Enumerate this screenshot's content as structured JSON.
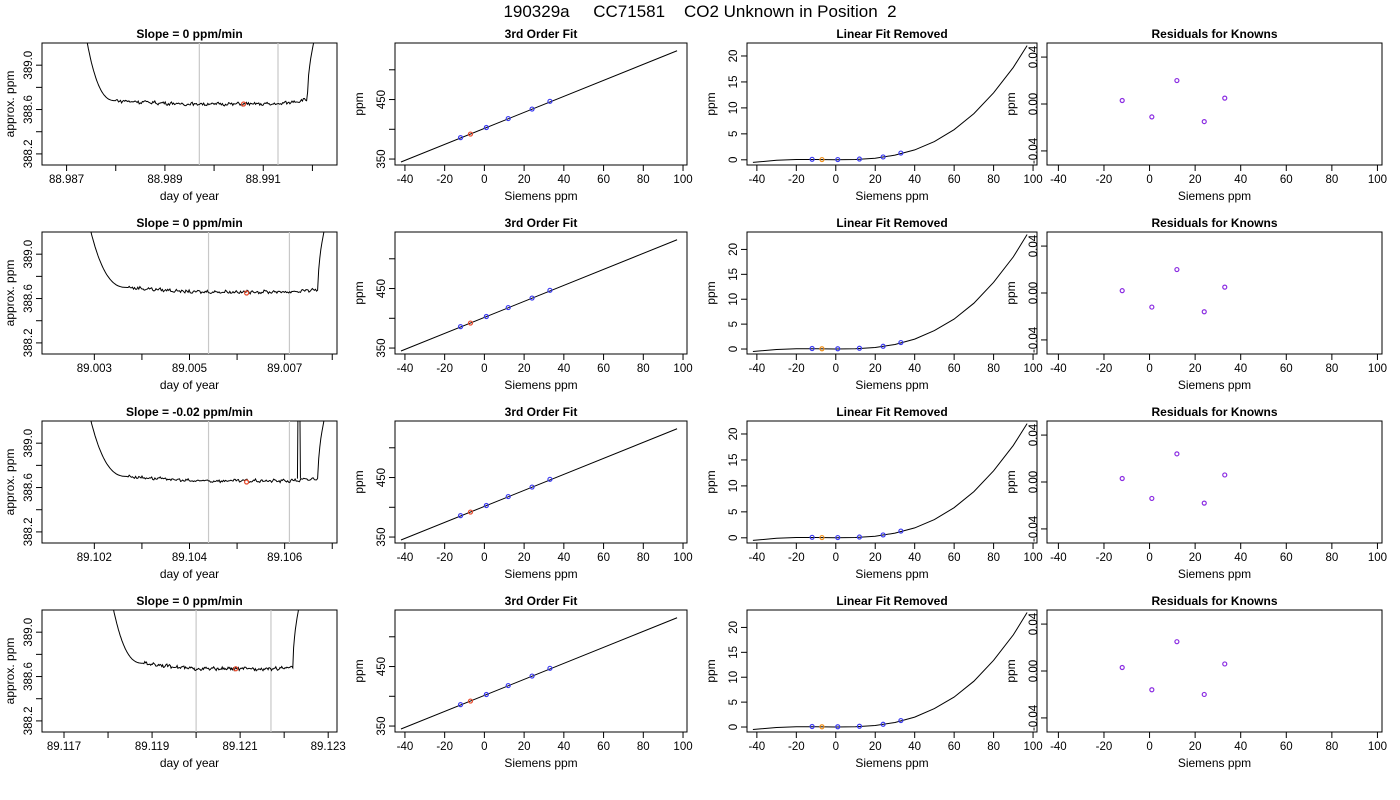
{
  "page": {
    "title": "190329a     CC71581    CO2 Unknown in Position  2"
  },
  "chart_data": [
    {
      "type": "line",
      "panel": "timeseries",
      "row": 1,
      "title": "Slope =  0  ppm/min",
      "xlabel": "day of year",
      "ylabel": "approx. ppm",
      "xlim": [
        88.9865,
        88.9925
      ],
      "ylim": [
        388.1,
        389.2
      ],
      "xticks": [
        "88.987",
        "88.989",
        "88.991"
      ],
      "xtick_values": [
        88.987,
        88.989,
        88.991
      ],
      "yticks": [
        "388.2",
        "388.6",
        "389.0"
      ],
      "ytick_values": [
        388.2,
        388.6,
        389.0
      ],
      "cursor_lines": [
        88.9897,
        88.9913
      ],
      "marker": {
        "x": 88.9906,
        "y": 388.65,
        "color": "#e8482a"
      },
      "trace": {
        "start": 88.9874,
        "flat_start": 88.988,
        "flat_end": 88.9919,
        "end": 88.99205,
        "high": 389.25,
        "settle": 388.68,
        "level": 388.65,
        "end_level": 388.69
      },
      "line_color": "#000000"
    },
    {
      "type": "scatter",
      "panel": "fit",
      "row": 1,
      "title": "3rd Order Fit",
      "xlabel": "Siemens ppm",
      "ylabel": "ppm",
      "xlim": [
        -45,
        102
      ],
      "ylim": [
        340,
        545
      ],
      "xticks": [
        "-40",
        "-20",
        "0",
        "20",
        "40",
        "60",
        "80",
        "100"
      ],
      "xtick_values": [
        -40,
        -20,
        0,
        20,
        40,
        60,
        80,
        100
      ],
      "yticks": [
        "350",
        "450"
      ],
      "ytick_values": [
        350,
        450
      ],
      "yminor": [
        400,
        500
      ],
      "curve": {
        "x": [
          -42,
          97
        ],
        "y": [
          345,
          532
        ]
      },
      "knowns": {
        "x": [
          -12,
          1,
          12,
          24,
          33
        ],
        "y": [
          386,
          403,
          418,
          434,
          447
        ]
      },
      "unknown": {
        "x": [
          -7,
          -7
        ],
        "y": [
          392,
          392
        ]
      },
      "known_color": "#3b3bf0",
      "unknown_color": "#e8482a"
    },
    {
      "type": "scatter",
      "panel": "linear-removed",
      "row": 1,
      "title": "Linear Fit Removed",
      "xlabel": "Siemens ppm",
      "ylabel": "ppm",
      "xlim": [
        -45,
        102
      ],
      "ylim": [
        -1,
        22.5
      ],
      "xticks": [
        "-40",
        "-20",
        "0",
        "20",
        "40",
        "60",
        "80",
        "100"
      ],
      "xtick_values": [
        -40,
        -20,
        0,
        20,
        40,
        60,
        80,
        100
      ],
      "yticks": [
        "0",
        "5",
        "10",
        "15",
        "20"
      ],
      "ytick_values": [
        0,
        5,
        10,
        15,
        20
      ],
      "curve_points": {
        "x": [
          -42,
          -30,
          -20,
          -10,
          0,
          10,
          20,
          30,
          40,
          50,
          60,
          70,
          80,
          90,
          97
        ],
        "y": [
          -0.5,
          -0.1,
          0.05,
          0.05,
          0.0,
          0.05,
          0.3,
          0.9,
          1.9,
          3.5,
          5.8,
          8.9,
          12.9,
          17.8,
          22.0
        ]
      },
      "knowns": {
        "x": [
          -12,
          1,
          12,
          24,
          33
        ],
        "y": [
          0.1,
          0.05,
          0.15,
          0.55,
          1.3
        ]
      },
      "unknown": {
        "x": [
          -7
        ],
        "y": [
          0.05
        ]
      },
      "known_color": "#3b3bf0",
      "unknown_color": "#f0901a"
    },
    {
      "type": "scatter",
      "panel": "residuals",
      "row": 1,
      "title": "Residuals for Knowns",
      "xlabel": "Siemens ppm",
      "ylabel": "ppm",
      "xlim": [
        -45,
        102
      ],
      "ylim": [
        -0.052,
        0.052
      ],
      "xticks": [
        "-40",
        "-20",
        "0",
        "20",
        "40",
        "60",
        "80",
        "100"
      ],
      "xtick_values": [
        -40,
        -20,
        0,
        20,
        40,
        60,
        80,
        100
      ],
      "yticks": [
        "-0.04",
        "0.00",
        "0.04"
      ],
      "ytick_values": [
        -0.04,
        0.0,
        0.04
      ],
      "points": {
        "x": [
          -12,
          1,
          12,
          24,
          33
        ],
        "y": [
          0.003,
          -0.011,
          0.02,
          -0.015,
          0.005
        ]
      },
      "point_color": "#8a2be2"
    },
    {
      "type": "line",
      "panel": "timeseries",
      "row": 2,
      "title": "Slope =  0  ppm/min",
      "xlabel": "day of year",
      "ylabel": "approx. ppm",
      "xlim": [
        89.0019,
        89.0081
      ],
      "ylim": [
        388.1,
        389.2
      ],
      "xticks": [
        "89.003",
        "89.005",
        "89.007"
      ],
      "xtick_values": [
        89.003,
        89.005,
        89.007
      ],
      "yticks": [
        "388.2",
        "388.6",
        "389.0"
      ],
      "ytick_values": [
        388.2,
        388.6,
        389.0
      ],
      "cursor_lines": [
        89.0054,
        89.0071
      ],
      "marker": {
        "x": 89.0062,
        "y": 388.65,
        "color": "#e8482a"
      },
      "trace": {
        "start": 89.0029,
        "flat_start": 89.0037,
        "flat_end": 89.0077,
        "end": 89.00785,
        "high": 389.25,
        "settle": 388.7,
        "level": 388.66,
        "end_level": 388.68
      },
      "line_color": "#000000"
    },
    {
      "type": "scatter",
      "panel": "fit",
      "row": 2,
      "title": "3rd Order Fit",
      "xlabel": "Siemens ppm",
      "ylabel": "ppm",
      "xlim": [
        -45,
        102
      ],
      "ylim": [
        340,
        545
      ],
      "xticks": [
        "-40",
        "-20",
        "0",
        "20",
        "40",
        "60",
        "80",
        "100"
      ],
      "xtick_values": [
        -40,
        -20,
        0,
        20,
        40,
        60,
        80,
        100
      ],
      "yticks": [
        "350",
        "450"
      ],
      "ytick_values": [
        350,
        450
      ],
      "yminor": [
        400,
        500
      ],
      "curve": {
        "x": [
          -42,
          97
        ],
        "y": [
          345,
          532
        ]
      },
      "knowns": {
        "x": [
          -12,
          1,
          12,
          24,
          33
        ],
        "y": [
          386,
          403,
          418,
          434,
          447
        ]
      },
      "unknown": {
        "x": [
          -7
        ],
        "y": [
          392
        ]
      },
      "known_color": "#3b3bf0",
      "unknown_color": "#e8482a"
    },
    {
      "type": "scatter",
      "panel": "linear-removed",
      "row": 2,
      "title": "Linear Fit Removed",
      "xlabel": "Siemens ppm",
      "ylabel": "ppm",
      "xlim": [
        -45,
        102
      ],
      "ylim": [
        -1,
        23.5
      ],
      "xticks": [
        "-40",
        "-20",
        "0",
        "20",
        "40",
        "60",
        "80",
        "100"
      ],
      "xtick_values": [
        -40,
        -20,
        0,
        20,
        40,
        60,
        80,
        100
      ],
      "yticks": [
        "0",
        "5",
        "10",
        "15",
        "20"
      ],
      "ytick_values": [
        0,
        5,
        10,
        15,
        20
      ],
      "curve_points": {
        "x": [
          -42,
          -30,
          -20,
          -10,
          0,
          10,
          20,
          30,
          40,
          50,
          60,
          70,
          80,
          90,
          97
        ],
        "y": [
          -0.5,
          -0.1,
          0.05,
          0.05,
          0.0,
          0.05,
          0.3,
          0.9,
          2.0,
          3.7,
          6.0,
          9.2,
          13.4,
          18.5,
          23.0
        ]
      },
      "knowns": {
        "x": [
          -12,
          1,
          12,
          24,
          33
        ],
        "y": [
          0.1,
          0.05,
          0.15,
          0.55,
          1.3
        ]
      },
      "unknown": {
        "x": [
          -7
        ],
        "y": [
          0.05
        ]
      },
      "known_color": "#3b3bf0",
      "unknown_color": "#f0901a"
    },
    {
      "type": "scatter",
      "panel": "residuals",
      "row": 2,
      "title": "Residuals for Knowns",
      "xlabel": "Siemens ppm",
      "ylabel": "ppm",
      "xlim": [
        -45,
        102
      ],
      "ylim": [
        -0.052,
        0.052
      ],
      "xticks": [
        "-40",
        "-20",
        "0",
        "20",
        "40",
        "60",
        "80",
        "100"
      ],
      "xtick_values": [
        -40,
        -20,
        0,
        20,
        40,
        60,
        80,
        100
      ],
      "yticks": [
        "-0.04",
        "0.00",
        "0.04"
      ],
      "ytick_values": [
        -0.04,
        0.0,
        0.04
      ],
      "points": {
        "x": [
          -12,
          1,
          12,
          24,
          33
        ],
        "y": [
          0.002,
          -0.012,
          0.02,
          -0.016,
          0.005
        ]
      },
      "point_color": "#8a2be2"
    },
    {
      "type": "line",
      "panel": "timeseries",
      "row": 3,
      "title": "Slope =  -0.02  ppm/min",
      "xlabel": "day of year",
      "ylabel": "approx. ppm",
      "xlim": [
        89.1009,
        89.1071
      ],
      "ylim": [
        388.1,
        389.2
      ],
      "xticks": [
        "89.102",
        "89.104",
        "89.106"
      ],
      "xtick_values": [
        89.102,
        89.104,
        89.106
      ],
      "yticks": [
        "388.2",
        "388.6",
        "389.0"
      ],
      "ytick_values": [
        388.2,
        388.6,
        389.0
      ],
      "cursor_lines": [
        89.1044,
        89.1061
      ],
      "marker": {
        "x": 89.1052,
        "y": 388.65,
        "color": "#e8482a"
      },
      "trace": {
        "start": 89.1019,
        "flat_start": 89.1027,
        "flat_end": 89.1067,
        "end": 89.10685,
        "high": 389.25,
        "settle": 388.7,
        "level": 388.66,
        "end_level": 388.68,
        "spike": 89.1063
      },
      "line_color": "#000000"
    },
    {
      "type": "scatter",
      "panel": "fit",
      "row": 3,
      "title": "3rd Order Fit",
      "xlabel": "Siemens ppm",
      "ylabel": "ppm",
      "xlim": [
        -45,
        102
      ],
      "ylim": [
        340,
        545
      ],
      "xticks": [
        "-40",
        "-20",
        "0",
        "20",
        "40",
        "60",
        "80",
        "100"
      ],
      "xtick_values": [
        -40,
        -20,
        0,
        20,
        40,
        60,
        80,
        100
      ],
      "yticks": [
        "350",
        "450"
      ],
      "ytick_values": [
        350,
        450
      ],
      "yminor": [
        400,
        500
      ],
      "curve": {
        "x": [
          -42,
          97
        ],
        "y": [
          345,
          532
        ]
      },
      "knowns": {
        "x": [
          -12,
          1,
          12,
          24,
          33
        ],
        "y": [
          386,
          403,
          418,
          434,
          447
        ]
      },
      "unknown": {
        "x": [
          -7
        ],
        "y": [
          392
        ]
      },
      "known_color": "#3b3bf0",
      "unknown_color": "#e8482a"
    },
    {
      "type": "scatter",
      "panel": "linear-removed",
      "row": 3,
      "title": "Linear Fit Removed",
      "xlabel": "Siemens ppm",
      "ylabel": "ppm",
      "xlim": [
        -45,
        102
      ],
      "ylim": [
        -1,
        22.5
      ],
      "xticks": [
        "-40",
        "-20",
        "0",
        "20",
        "40",
        "60",
        "80",
        "100"
      ],
      "xtick_values": [
        -40,
        -20,
        0,
        20,
        40,
        60,
        80,
        100
      ],
      "yticks": [
        "0",
        "5",
        "10",
        "15",
        "20"
      ],
      "ytick_values": [
        0,
        5,
        10,
        15,
        20
      ],
      "curve_points": {
        "x": [
          -42,
          -30,
          -20,
          -10,
          0,
          10,
          20,
          30,
          40,
          50,
          60,
          70,
          80,
          90,
          97
        ],
        "y": [
          -0.5,
          -0.1,
          0.05,
          0.05,
          0.0,
          0.05,
          0.3,
          0.9,
          1.9,
          3.5,
          5.8,
          8.9,
          12.9,
          17.8,
          22.0
        ]
      },
      "knowns": {
        "x": [
          -12,
          1,
          12,
          24,
          33
        ],
        "y": [
          0.1,
          0.05,
          0.15,
          0.55,
          1.3
        ]
      },
      "unknown": {
        "x": [
          -7
        ],
        "y": [
          0.05
        ]
      },
      "known_color": "#3b3bf0",
      "unknown_color": "#f0901a"
    },
    {
      "type": "scatter",
      "panel": "residuals",
      "row": 3,
      "title": "Residuals for Knowns",
      "xlabel": "Siemens ppm",
      "ylabel": "ppm",
      "xlim": [
        -45,
        102
      ],
      "ylim": [
        -0.052,
        0.052
      ],
      "xticks": [
        "-40",
        "-20",
        "0",
        "20",
        "40",
        "60",
        "80",
        "100"
      ],
      "xtick_values": [
        -40,
        -20,
        0,
        20,
        40,
        60,
        80,
        100
      ],
      "yticks": [
        "-0.04",
        "0.00",
        "0.04"
      ],
      "ytick_values": [
        -0.04,
        0.0,
        0.04
      ],
      "points": {
        "x": [
          -12,
          1,
          12,
          24,
          33
        ],
        "y": [
          0.003,
          -0.014,
          0.024,
          -0.018,
          0.006
        ]
      },
      "point_color": "#8a2be2"
    },
    {
      "type": "line",
      "panel": "timeseries",
      "row": 4,
      "title": "Slope =  0  ppm/min",
      "xlabel": "day of year",
      "ylabel": "approx. ppm",
      "xlim": [
        89.1165,
        89.1232
      ],
      "ylim": [
        388.1,
        389.2
      ],
      "xticks": [
        "89.117",
        "89.119",
        "89.121",
        "89.123"
      ],
      "xtick_values": [
        89.117,
        89.119,
        89.121,
        89.123
      ],
      "yticks": [
        "388.2",
        "388.6",
        "389.0"
      ],
      "ytick_values": [
        388.2,
        388.6,
        389.0
      ],
      "cursor_lines": [
        89.12,
        89.1217
      ],
      "marker": {
        "x": 89.1209,
        "y": 388.67,
        "color": "#e8482a"
      },
      "trace": {
        "start": 89.1181,
        "flat_start": 89.1188,
        "flat_end": 89.1222,
        "end": 89.12235,
        "high": 389.25,
        "settle": 388.72,
        "level": 388.67,
        "end_level": 388.68
      },
      "line_color": "#000000"
    },
    {
      "type": "scatter",
      "panel": "fit",
      "row": 4,
      "title": "3rd Order Fit",
      "xlabel": "Siemens ppm",
      "ylabel": "ppm",
      "xlim": [
        -45,
        102
      ],
      "ylim": [
        340,
        545
      ],
      "xticks": [
        "-40",
        "-20",
        "0",
        "20",
        "40",
        "60",
        "80",
        "100"
      ],
      "xtick_values": [
        -40,
        -20,
        0,
        20,
        40,
        60,
        80,
        100
      ],
      "yticks": [
        "350",
        "450"
      ],
      "ytick_values": [
        350,
        450
      ],
      "yminor": [
        400,
        500
      ],
      "curve": {
        "x": [
          -42,
          97
        ],
        "y": [
          345,
          532
        ]
      },
      "knowns": {
        "x": [
          -12,
          1,
          12,
          24,
          33
        ],
        "y": [
          386,
          403,
          418,
          434,
          447
        ]
      },
      "unknown": {
        "x": [
          -7
        ],
        "y": [
          392
        ]
      },
      "known_color": "#3b3bf0",
      "unknown_color": "#e8482a"
    },
    {
      "type": "scatter",
      "panel": "linear-removed",
      "row": 4,
      "title": "Linear Fit Removed",
      "xlabel": "Siemens ppm",
      "ylabel": "ppm",
      "xlim": [
        -45,
        102
      ],
      "ylim": [
        -1,
        23.5
      ],
      "xticks": [
        "-40",
        "-20",
        "0",
        "20",
        "40",
        "60",
        "80",
        "100"
      ],
      "xtick_values": [
        -40,
        -20,
        0,
        20,
        40,
        60,
        80,
        100
      ],
      "yticks": [
        "0",
        "5",
        "10",
        "15",
        "20"
      ],
      "ytick_values": [
        0,
        5,
        10,
        15,
        20
      ],
      "curve_points": {
        "x": [
          -42,
          -30,
          -20,
          -10,
          0,
          10,
          20,
          30,
          40,
          50,
          60,
          70,
          80,
          90,
          97
        ],
        "y": [
          -0.5,
          -0.1,
          0.05,
          0.05,
          0.0,
          0.05,
          0.3,
          0.9,
          2.0,
          3.7,
          6.0,
          9.2,
          13.4,
          18.5,
          23.0
        ]
      },
      "knowns": {
        "x": [
          -12,
          1,
          12,
          24,
          33
        ],
        "y": [
          0.1,
          0.05,
          0.15,
          0.55,
          1.3
        ]
      },
      "unknown": {
        "x": [
          -7
        ],
        "y": [
          0.05
        ]
      },
      "known_color": "#3b3bf0",
      "unknown_color": "#f0901a"
    },
    {
      "type": "scatter",
      "panel": "residuals",
      "row": 4,
      "title": "Residuals for Knowns",
      "xlabel": "Siemens ppm",
      "ylabel": "ppm",
      "xlim": [
        -45,
        102
      ],
      "ylim": [
        -0.052,
        0.052
      ],
      "xticks": [
        "-40",
        "-20",
        "0",
        "20",
        "40",
        "60",
        "80",
        "100"
      ],
      "xtick_values": [
        -40,
        -20,
        0,
        20,
        40,
        60,
        80,
        100
      ],
      "yticks": [
        "-0.04",
        "0.00",
        "0.04"
      ],
      "ytick_values": [
        -0.04,
        0.0,
        0.04
      ],
      "points": {
        "x": [
          -12,
          1,
          12,
          24,
          33
        ],
        "y": [
          0.003,
          -0.016,
          0.025,
          -0.02,
          0.006
        ]
      },
      "point_color": "#8a2be2"
    }
  ]
}
